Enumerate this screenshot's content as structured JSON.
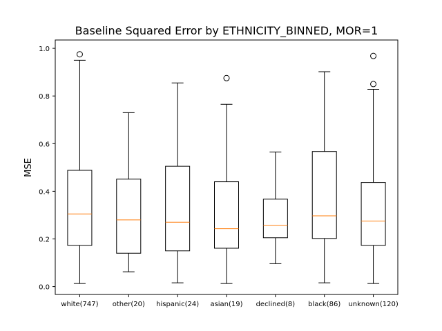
{
  "chart_data": {
    "type": "boxplot",
    "title": "Baseline Squared Error by ETHNICITY_BINNED, MOR=1",
    "xlabel": "",
    "ylabel": "MSE",
    "ylim": [
      -0.033,
      1.035
    ],
    "yticks": [
      0.0,
      0.2,
      0.4,
      0.6,
      0.8,
      1.0
    ],
    "ytick_labels": [
      "0.0",
      "0.2",
      "0.4",
      "0.6",
      "0.8",
      "1.0"
    ],
    "grid": false,
    "colors": {
      "box": "#000000",
      "median": "#ff7f0e",
      "background": "#ffffff"
    },
    "categories": [
      "white(747)",
      "other(20)",
      "hispanic(24)",
      "asian(19)",
      "declined(8)",
      "black(86)",
      "unknown(120)"
    ],
    "boxes": [
      {
        "whisker_low": 0.013,
        "q1": 0.173,
        "median": 0.305,
        "q3": 0.488,
        "whisker_high": 0.95,
        "outliers": [
          0.975
        ]
      },
      {
        "whisker_low": 0.062,
        "q1": 0.14,
        "median": 0.28,
        "q3": 0.451,
        "whisker_high": 0.73,
        "outliers": []
      },
      {
        "whisker_low": 0.016,
        "q1": 0.15,
        "median": 0.27,
        "q3": 0.505,
        "whisker_high": 0.855,
        "outliers": []
      },
      {
        "whisker_low": 0.013,
        "q1": 0.161,
        "median": 0.243,
        "q3": 0.44,
        "whisker_high": 0.765,
        "outliers": [
          0.875
        ]
      },
      {
        "whisker_low": 0.096,
        "q1": 0.205,
        "median": 0.257,
        "q3": 0.367,
        "whisker_high": 0.565,
        "outliers": []
      },
      {
        "whisker_low": 0.016,
        "q1": 0.202,
        "median": 0.297,
        "q3": 0.567,
        "whisker_high": 0.902,
        "outliers": []
      },
      {
        "whisker_low": 0.013,
        "q1": 0.173,
        "median": 0.275,
        "q3": 0.437,
        "whisker_high": 0.828,
        "outliers": [
          0.85,
          0.968
        ]
      }
    ]
  }
}
